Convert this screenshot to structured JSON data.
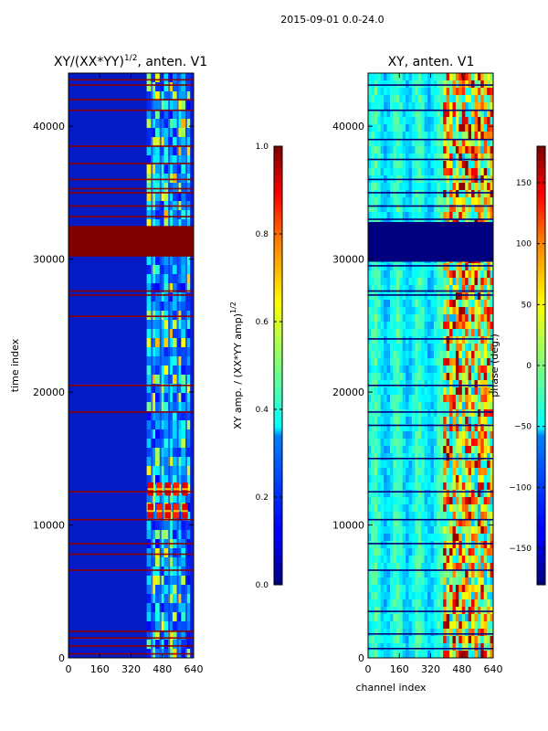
{
  "figure": {
    "suptitle": "2015-09-01 0.0-24.0"
  },
  "chart_data": [
    {
      "type": "heatmap",
      "title_main": "XY/(XX*YY)",
      "title_sup": "1/2",
      "title_tail": ", anten. V1",
      "xlabel": "",
      "ylabel": "time index",
      "xlim": [
        0,
        640
      ],
      "ylim": [
        0,
        44000
      ],
      "x_ticks": [
        0,
        160,
        320,
        480,
        640
      ],
      "y_ticks": [
        0,
        10000,
        20000,
        30000,
        40000
      ],
      "colormap": "jet",
      "colorbar": {
        "label_main": "XY amp. / (XX*YY amp)",
        "label_sup": "1/2",
        "range": [
          0.0,
          1.0
        ],
        "ticks": [
          0.0,
          0.2,
          0.4,
          0.6,
          0.8,
          1.0
        ],
        "tick_labels": [
          "0.0",
          "0.2",
          "0.4",
          "0.6",
          "0.8",
          "1.0"
        ]
      },
      "features": {
        "saturated_time_band": [
          30200,
          32500
        ],
        "active_channel_range": [
          400,
          620
        ],
        "high_amplitude_blocks": [
          {
            "channels": [
              400,
              620
            ],
            "time": [
              12200,
              13200
            ]
          },
          {
            "channels": [
              400,
              620
            ],
            "time": [
              10500,
              11600
            ]
          }
        ],
        "flagged_rows": [
          300,
          900,
          1500,
          2000,
          6600,
          7800,
          8600,
          10400,
          12500,
          18500,
          20500,
          25700,
          27300,
          27600,
          33200,
          34000,
          35000,
          35300,
          36000,
          37200,
          38500,
          41200,
          42000,
          43100,
          43500
        ]
      }
    },
    {
      "type": "heatmap",
      "title_main": "XY, anten. V1",
      "title_sup": "",
      "title_tail": "",
      "xlabel": "channel index",
      "ylabel": "",
      "xlim": [
        0,
        640
      ],
      "ylim": [
        0,
        44000
      ],
      "x_ticks": [
        0,
        160,
        320,
        480,
        640
      ],
      "y_ticks": [
        0,
        10000,
        20000,
        30000,
        40000
      ],
      "colormap": "jet",
      "colorbar": {
        "label_main": "phase (deg.)",
        "label_sup": "",
        "range": [
          -180,
          180
        ],
        "ticks": [
          -150,
          -100,
          -50,
          0,
          50,
          100,
          150
        ],
        "tick_labels": [
          "−150",
          "−100",
          "−50",
          "0",
          "50",
          "100",
          "150"
        ]
      },
      "features": {
        "saturated_time_band": [
          29800,
          32800
        ],
        "active_channel_range": [
          380,
          640
        ],
        "flagged_rows": [
          700,
          1800,
          3500,
          6600,
          8600,
          10400,
          12500,
          15000,
          17500,
          18500,
          20500,
          24000,
          27300,
          27600,
          29500,
          33000,
          34000,
          35000,
          36000,
          37500,
          39000,
          41200,
          43100
        ]
      }
    }
  ]
}
